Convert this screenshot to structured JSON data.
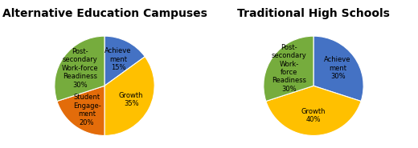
{
  "chart_data": [
    {
      "type": "pie",
      "title": "Alternative Education Campuses",
      "categories": [
        "Achieve\nment\n15%",
        "Growth\n35%",
        "Student\nEngage-\nment\n20%",
        "Post-\nsecondary\nWork-force\nReadiness\n30%"
      ],
      "values": [
        15,
        35,
        20,
        30
      ],
      "colors": [
        "#4472C4",
        "#FFC000",
        "#E36C0A",
        "#76AC3D"
      ]
    },
    {
      "type": "pie",
      "title": "Traditional High Schools",
      "categories": [
        "Achieve\nment\n30%",
        "Growth\n40%",
        "Post-\nsecondary\nWork-\nforce\nReadiness\n30%"
      ],
      "values": [
        30,
        40,
        30
      ],
      "colors": [
        "#4472C4",
        "#FFC000",
        "#76AC3D"
      ]
    }
  ]
}
